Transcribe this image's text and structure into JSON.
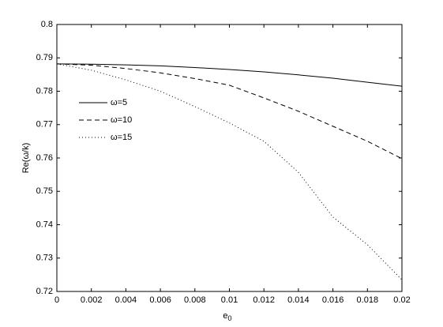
{
  "chart_data": {
    "type": "line",
    "x_label": {
      "text": "e",
      "subscript": "0"
    },
    "y_label": "Re(ω/k)",
    "x": [
      0,
      0.002,
      0.004,
      0.006,
      0.008,
      0.01,
      0.012,
      0.014,
      0.016,
      0.018,
      0.02
    ],
    "series": [
      {
        "name": "ω=5",
        "color": "#000000",
        "line_style": "solid",
        "values": [
          0.7882,
          0.7881,
          0.7879,
          0.7876,
          0.7871,
          0.7865,
          0.7858,
          0.7849,
          0.7839,
          0.7827,
          0.7815
        ]
      },
      {
        "name": "ω=10",
        "color": "#000000",
        "line_style": "dashed",
        "values": [
          0.7882,
          0.7878,
          0.7868,
          0.7855,
          0.7838,
          0.7818,
          0.778,
          0.774,
          0.7695,
          0.765,
          0.7598
        ]
      },
      {
        "name": "ω=15",
        "color": "#000000",
        "line_style": "dotted",
        "values": [
          0.7882,
          0.7863,
          0.7834,
          0.78,
          0.7754,
          0.7705,
          0.765,
          0.7557,
          0.7423,
          0.734,
          0.7235
        ]
      }
    ],
    "xlim": [
      0,
      0.02
    ],
    "xticks": [
      0,
      0.002,
      0.004,
      0.006,
      0.008,
      0.01,
      0.012,
      0.014,
      0.016,
      0.018,
      0.02
    ],
    "ylim": [
      0.72,
      0.8
    ],
    "yticks": [
      0.72,
      0.73,
      0.74,
      0.75,
      0.76,
      0.77,
      0.78,
      0.79,
      0.8
    ],
    "grid": false,
    "legend": "upper-left"
  }
}
